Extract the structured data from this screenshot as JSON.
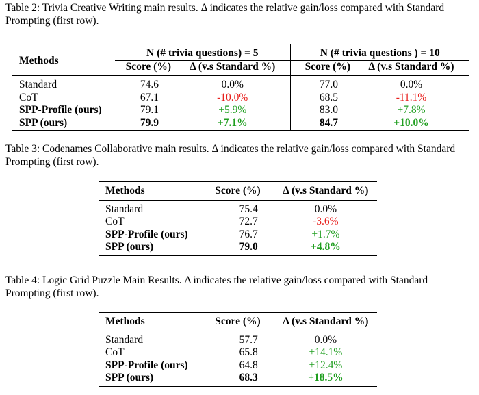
{
  "table2": {
    "caption": "Table 2:  Trivia Creative Writing main results.  Δ indicates the relative gain/loss compared with Standard Prompting (first row).",
    "methods_header": "Methods",
    "groups": [
      {
        "label": "N (# trivia questions) = 5",
        "score_header": "Score (%)",
        "delta_header": "Δ (v.s Standard %)"
      },
      {
        "label": "N (# trivia questions ) = 10",
        "score_header": "Score (%)",
        "delta_header": "Δ (v.s Standard %)"
      }
    ],
    "rows": [
      {
        "method": "Standard",
        "s5": "74.6",
        "d5": "0.0%",
        "s10": "77.0",
        "d10": "0.0%"
      },
      {
        "method": "CoT",
        "s5": "67.1",
        "d5": "-10.0%",
        "s10": "68.5",
        "d10": "-11.1%"
      },
      {
        "method": "SPP-Profile (ours)",
        "s5": "79.1",
        "d5": "+5.9%",
        "s10": "83.0",
        "d10": "+7.8%"
      },
      {
        "method": "SPP (ours)",
        "s5": "79.9",
        "d5": "+7.1%",
        "s10": "84.7",
        "d10": "+10.0%"
      }
    ]
  },
  "table3": {
    "caption": "Table 3:  Codenames Collaborative main results.  Δ indicates the relative gain/loss compared with Standard Prompting (first row).",
    "headers": {
      "methods": "Methods",
      "score": "Score (%)",
      "delta": "Δ (v.s Standard %)"
    },
    "rows": [
      {
        "method": "Standard",
        "score": "75.4",
        "delta": "0.0%"
      },
      {
        "method": "CoT",
        "score": "72.7",
        "delta": "-3.6%"
      },
      {
        "method": "SPP-Profile (ours)",
        "score": "76.7",
        "delta": "+1.7%"
      },
      {
        "method": "SPP (ours)",
        "score": "79.0",
        "delta": "+4.8%"
      }
    ]
  },
  "table4": {
    "caption": "Table 4:  Logic Grid Puzzle Main Results.  Δ indicates the relative gain/loss compared with Standard Prompting (first row).",
    "headers": {
      "methods": "Methods",
      "score": "Score (%)",
      "delta": "Δ (v.s Standard %)"
    },
    "rows": [
      {
        "method": "Standard",
        "score": "57.7",
        "delta": "0.0%"
      },
      {
        "method": "CoT",
        "score": "65.8",
        "delta": "+14.1%"
      },
      {
        "method": "SPP-Profile (ours)",
        "score": "64.8",
        "delta": "+12.4%"
      },
      {
        "method": "SPP (ours)",
        "score": "68.3",
        "delta": "+18.5%"
      }
    ]
  },
  "colors": {
    "negative": "#e8201d",
    "positive": "#1f9e1f"
  }
}
